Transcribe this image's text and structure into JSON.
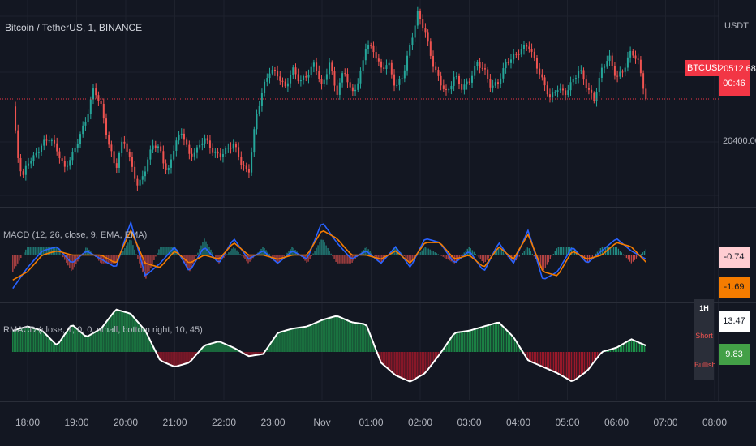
{
  "titles": {
    "main": "Bitcoin / TetherUS, 1, BINANCE",
    "macd": "MACD (12, 26, close, 9, EMA, EMA)",
    "rmacd": "RMACD (close, 1, 0, 0, small, bottom right, 10, 45)"
  },
  "axis": {
    "unit": "USDT",
    "price_tick": "20400.00"
  },
  "tags": {
    "symbol": "BTCUSDT",
    "price": "20512.68",
    "countdown": "00:46",
    "macd_value": "-0.74",
    "signal_value": "-1.69",
    "rmacd_value_1": "13.47",
    "rmacd_value_2": "9.83"
  },
  "status": {
    "timeframe": "1H",
    "position": "Short",
    "trend": "Bullish"
  },
  "colors": {
    "background": "#131722",
    "grid": "#1e222d",
    "up": "#26a69a",
    "down": "#ef5350",
    "macd_line": "#2962ff",
    "signal_line": "#f57c00",
    "hist_up": "#26a69a",
    "hist_down": "#ef5350",
    "rmacd_up": "#1e9e4e",
    "rmacd_down": "#b2182b",
    "rmacd_line": "#ffffff",
    "price_line": "#f23645"
  },
  "chart_data": {
    "type": "line",
    "x_ticks": [
      "18:00",
      "19:00",
      "20:00",
      "21:00",
      "22:00",
      "23:00",
      "Nov",
      "01:00",
      "02:00",
      "03:00",
      "04:00",
      "05:00",
      "06:00",
      "07:00",
      "08:00"
    ],
    "price_ylim": [
      20340,
      20645
    ],
    "price_series": {
      "name": "BTCUSDT",
      "x": [
        17.7,
        17.8,
        17.9,
        18.0,
        18.15,
        18.3,
        18.45,
        18.6,
        18.75,
        18.9,
        19.05,
        19.2,
        19.35,
        19.5,
        19.65,
        19.8,
        19.95,
        20.1,
        20.25,
        20.4,
        20.55,
        20.7,
        20.85,
        21.0,
        21.15,
        21.3,
        21.45,
        21.6,
        21.75,
        21.9,
        22.05,
        22.2,
        22.35,
        22.5,
        22.65,
        22.8,
        22.95,
        23.1,
        23.25,
        23.4,
        23.55,
        23.7,
        23.85,
        24.0,
        24.15,
        24.3,
        24.45,
        24.6,
        24.75,
        24.9,
        25.05,
        25.2,
        25.35,
        25.5,
        25.65,
        25.8,
        25.95,
        26.1,
        26.25,
        26.4,
        26.55,
        26.7,
        26.85,
        27.0,
        27.15,
        27.3,
        27.45,
        27.6,
        27.75,
        27.9,
        28.05,
        28.2,
        28.35,
        28.5,
        28.65,
        28.8,
        28.95,
        29.1,
        29.25,
        29.4,
        29.55,
        29.7,
        29.85,
        30.0,
        30.15,
        30.3,
        30.45,
        30.6
      ],
      "values": [
        20500,
        20420,
        20385,
        20410,
        20420,
        20440,
        20450,
        20430,
        20400,
        20420,
        20450,
        20480,
        20530,
        20500,
        20440,
        20400,
        20450,
        20410,
        20370,
        20400,
        20440,
        20430,
        20390,
        20440,
        20460,
        20420,
        20430,
        20450,
        20430,
        20420,
        20430,
        20440,
        20410,
        20390,
        20480,
        20530,
        20560,
        20550,
        20530,
        20560,
        20540,
        20550,
        20570,
        20530,
        20570,
        20520,
        20560,
        20520,
        20540,
        20600,
        20590,
        20560,
        20570,
        20530,
        20550,
        20600,
        20650,
        20620,
        20570,
        20540,
        20520,
        20550,
        20530,
        20540,
        20570,
        20560,
        20530,
        20540,
        20570,
        20580,
        20590,
        20600,
        20570,
        20540,
        20513,
        20530,
        20520,
        20540,
        20560,
        20530,
        20510,
        20560,
        20580,
        20545,
        20560,
        20590,
        20570,
        20512
      ]
    },
    "macd_ylim": [
      -11,
      11
    ],
    "macd_series": {
      "name": "MACD",
      "x": [
        17.7,
        18.0,
        18.3,
        18.6,
        18.9,
        19.2,
        19.5,
        19.8,
        20.1,
        20.4,
        20.7,
        21.0,
        21.3,
        21.6,
        21.9,
        22.2,
        22.5,
        22.8,
        23.1,
        23.4,
        23.7,
        24.0,
        24.3,
        24.6,
        24.9,
        25.2,
        25.5,
        25.8,
        26.1,
        26.4,
        26.7,
        27.0,
        27.3,
        27.6,
        27.9,
        28.2,
        28.5,
        28.8,
        29.1,
        29.4,
        29.7,
        30.0,
        30.3,
        30.6
      ],
      "values": [
        -8,
        -3,
        1,
        2,
        -2,
        1,
        -1,
        -3,
        8,
        -5,
        -2,
        2,
        -4,
        2,
        -2,
        4,
        -1,
        1,
        -2,
        1,
        -1,
        8,
        3,
        -1,
        1,
        -2,
        2,
        -3,
        4,
        3,
        -2,
        1,
        -4,
        3,
        -2,
        6,
        -6,
        -4,
        2,
        -2,
        1,
        4,
        1,
        -1
      ]
    },
    "signal_series": {
      "name": "Signal",
      "x": [
        17.7,
        18.0,
        18.3,
        18.6,
        18.9,
        19.2,
        19.5,
        19.8,
        20.1,
        20.4,
        20.7,
        21.0,
        21.3,
        21.6,
        21.9,
        22.2,
        22.5,
        22.8,
        23.1,
        23.4,
        23.7,
        24.0,
        24.3,
        24.6,
        24.9,
        25.2,
        25.5,
        25.8,
        26.1,
        26.4,
        26.7,
        27.0,
        27.3,
        27.6,
        27.9,
        28.2,
        28.5,
        28.8,
        29.1,
        29.4,
        29.7,
        30.0,
        30.3,
        30.6
      ],
      "values": [
        -6,
        -4,
        0,
        1,
        0,
        0,
        0,
        -2,
        6,
        -2,
        -3,
        1,
        -2,
        0,
        -1,
        3,
        0,
        0,
        -1,
        0,
        0,
        6,
        4,
        0,
        0,
        -1,
        1,
        -2,
        3,
        3,
        -1,
        0,
        -3,
        2,
        -1,
        5,
        -4,
        -5,
        1,
        -1,
        0,
        3,
        2,
        -1.7
      ]
    },
    "rmacd_ylim": [
      -45,
      45
    ],
    "rmacd_series": {
      "name": "RMACD",
      "x": [
        17.7,
        18.0,
        18.3,
        18.6,
        18.9,
        19.2,
        19.5,
        19.8,
        20.1,
        20.4,
        20.7,
        21.0,
        21.3,
        21.6,
        21.9,
        22.2,
        22.5,
        22.8,
        23.1,
        23.4,
        23.7,
        24.0,
        24.3,
        24.6,
        24.9,
        25.2,
        25.5,
        25.8,
        26.1,
        26.4,
        26.7,
        27.0,
        27.3,
        27.6,
        27.9,
        28.2,
        28.5,
        28.8,
        29.1,
        29.4,
        29.7,
        30.0,
        30.3,
        30.6
      ],
      "values": [
        20,
        24,
        20,
        6,
        26,
        14,
        22,
        40,
        36,
        20,
        -8,
        -14,
        -10,
        6,
        10,
        4,
        -4,
        -2,
        18,
        22,
        24,
        30,
        34,
        28,
        26,
        -10,
        -22,
        -28,
        -20,
        -2,
        18,
        20,
        24,
        28,
        14,
        -8,
        -14,
        -20,
        -28,
        -18,
        0,
        4,
        12,
        6
      ]
    }
  }
}
